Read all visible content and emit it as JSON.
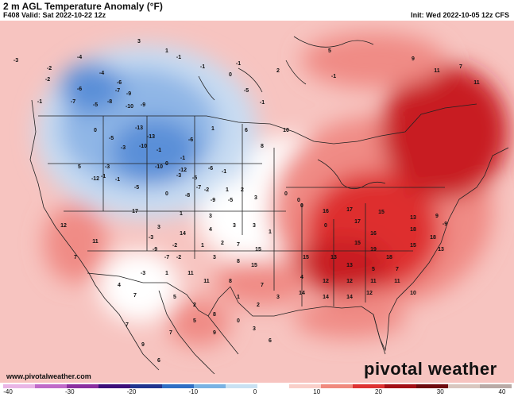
{
  "header": {
    "title": "2 m AGL Temperature Anomaly (°F)",
    "valid": "F408 Valid: Sat 2022-10-22 12z",
    "init": "Init: Wed 2022-10-05 12z CFS"
  },
  "footer": {
    "site": "www.pivotalweather.com",
    "brand": "pivotal weather"
  },
  "colorbar": {
    "ticks": [
      "-40",
      "-30",
      "-20",
      "-10",
      "0",
      "10",
      "20",
      "30",
      "40"
    ],
    "colors": [
      "#e9b5e6",
      "#c06ac9",
      "#8b2fa0",
      "#3d0e7a",
      "#21358f",
      "#2f6fc4",
      "#79b2e3",
      "#c9e1f2",
      "#ffffff",
      "#f9cfc9",
      "#f08a7e",
      "#de3333",
      "#a30f16",
      "#6e0a0f",
      "#d9c7bf",
      "#b9aaa6"
    ]
  },
  "map": {
    "colors": {
      "warm_light": "#f7c4c0",
      "warm_medium": "#f08b85",
      "warm_strong": "#de2e2e",
      "warm_deep": "#c81f22",
      "cool_light": "#c8dcf2",
      "cool_medium": "#8fb6e6",
      "cool_strong": "#5a8fd8",
      "neutral": "#ffffff",
      "border": "#222222"
    },
    "values": [
      "3",
      "1",
      "-4",
      "-2",
      "-3",
      "-4",
      "-2",
      "-6",
      "-7",
      "-6",
      "-9",
      "-8",
      "-7",
      "-5",
      "-1",
      "-10",
      "-9",
      "-1",
      "-1",
      "0",
      "-5",
      "-1",
      "2",
      "-1",
      "5",
      "9",
      "11",
      "7",
      "11",
      "-1",
      "-13",
      "-13",
      "-10",
      "-6",
      "-1",
      "-1",
      "0",
      "0",
      "-5",
      "-3",
      "-10",
      "-12",
      "-5",
      "-6",
      "-7",
      "-1",
      "-3",
      "5",
      "-12",
      "-3",
      "-2",
      "1",
      "2",
      "3",
      "0",
      "0",
      "1",
      "6",
      "8",
      "10",
      "-1",
      "-1",
      "-5",
      "0",
      "-8",
      "-9",
      "-5",
      "3",
      "1",
      "16",
      "17",
      "15",
      "13",
      "9",
      "-9",
      "4",
      "3",
      "3",
      "1",
      "0",
      "0",
      "17",
      "16",
      "18",
      "18",
      "14",
      "17",
      "3",
      "-3",
      "-2",
      "1",
      "2",
      "7",
      "15",
      "15",
      "19",
      "18",
      "15",
      "13",
      "-9",
      "-7",
      "-2",
      "3",
      "8",
      "15",
      "15",
      "13",
      "13",
      "5",
      "7",
      "-3",
      "1",
      "11",
      "11",
      "8",
      "7",
      "4",
      "12",
      "12",
      "11",
      "11",
      "4",
      "7",
      "5",
      "2",
      "1",
      "2",
      "3",
      "14",
      "14",
      "14",
      "12",
      "10",
      "11",
      "12",
      "7",
      "8",
      "5",
      "9",
      "7",
      "0",
      "3",
      "6",
      "7",
      "9",
      "6"
    ]
  }
}
